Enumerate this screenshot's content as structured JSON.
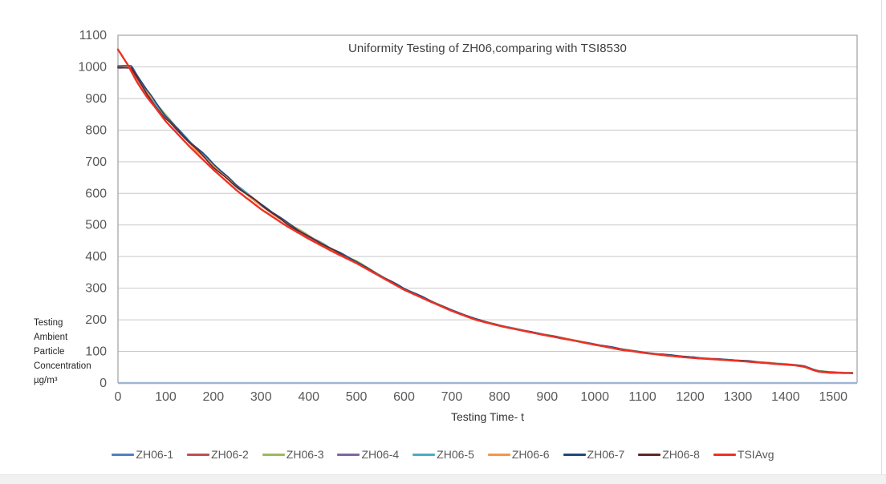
{
  "page": {
    "background": "#ffffff",
    "bottom_strip_color": "#f1f1f1",
    "edge_line_color": "#dedede"
  },
  "chart_data": {
    "type": "line",
    "title": "Uniformity Testing of ZH06,comparing with TSI8530",
    "xlabel": "Testing Time- t",
    "ylabel_lines": [
      "Testing",
      "Ambient",
      "Particle",
      "Concentration",
      "µg/m³"
    ],
    "xlim": [
      0,
      1550
    ],
    "xticks": [
      0,
      100,
      200,
      300,
      400,
      500,
      600,
      700,
      800,
      900,
      1000,
      1100,
      1200,
      1300,
      1400,
      1500
    ],
    "ylim": [
      0,
      1100
    ],
    "yticks": [
      0,
      100,
      200,
      300,
      400,
      500,
      600,
      700,
      800,
      900,
      1000,
      1100
    ],
    "grid": "horizontal-only",
    "gridline_color": "#c9c9c9",
    "plot_border_color": "#a6a6a6",
    "baseline_color": "#9db6d4",
    "tick_label_color": "#595959",
    "legend_position": "bottom",
    "series": [
      {
        "name": "ZH06-1",
        "color": "#4F81BD",
        "trend": "zh_trend",
        "jitter": true,
        "width": 1.6
      },
      {
        "name": "ZH06-2",
        "color": "#C0504D",
        "trend": "zh_trend",
        "jitter": true,
        "width": 1.6
      },
      {
        "name": "ZH06-3",
        "color": "#9BBB59",
        "trend": "zh_trend",
        "jitter": true,
        "width": 1.6
      },
      {
        "name": "ZH06-4",
        "color": "#8064A2",
        "trend": "zh_trend",
        "jitter": true,
        "width": 1.6
      },
      {
        "name": "ZH06-5",
        "color": "#4BACC6",
        "trend": "zh_trend",
        "jitter": true,
        "width": 1.6
      },
      {
        "name": "ZH06-6",
        "color": "#F79646",
        "trend": "zh_trend",
        "jitter": true,
        "width": 1.6
      },
      {
        "name": "ZH06-7",
        "color": "#1F497D",
        "trend": "zh_trend",
        "jitter": true,
        "width": 1.6
      },
      {
        "name": "ZH06-8",
        "color": "#632523",
        "trend": "zh_trend",
        "jitter": true,
        "width": 1.6
      },
      {
        "name": "TSIAvg",
        "color": "#EE3124",
        "trend": "tsi_trend",
        "jitter": false,
        "width": 2.4
      }
    ],
    "zh_trend": [
      [
        0,
        1000
      ],
      [
        28,
        1000
      ],
      [
        60,
        920
      ],
      [
        100,
        843
      ],
      [
        150,
        762
      ],
      [
        200,
        688
      ],
      [
        250,
        622
      ],
      [
        300,
        563
      ],
      [
        350,
        510
      ],
      [
        400,
        464
      ],
      [
        450,
        422
      ],
      [
        500,
        383
      ],
      [
        550,
        340
      ],
      [
        600,
        297
      ],
      [
        650,
        263
      ],
      [
        700,
        230
      ],
      [
        750,
        201
      ],
      [
        800,
        182
      ],
      [
        850,
        166
      ],
      [
        900,
        151
      ],
      [
        950,
        137
      ],
      [
        1000,
        122
      ],
      [
        1050,
        108
      ],
      [
        1100,
        97
      ],
      [
        1150,
        88
      ],
      [
        1200,
        81
      ],
      [
        1250,
        76
      ],
      [
        1300,
        71
      ],
      [
        1360,
        64
      ],
      [
        1420,
        57
      ],
      [
        1440,
        52
      ],
      [
        1455,
        44
      ],
      [
        1470,
        37
      ],
      [
        1490,
        34
      ],
      [
        1540,
        32
      ]
    ],
    "tsi_trend": [
      [
        0,
        1055
      ],
      [
        20,
        1008
      ],
      [
        40,
        952
      ],
      [
        60,
        906
      ],
      [
        80,
        868
      ],
      [
        100,
        828
      ],
      [
        150,
        748
      ],
      [
        200,
        675
      ],
      [
        250,
        608
      ],
      [
        300,
        550
      ],
      [
        350,
        500
      ],
      [
        400,
        456
      ],
      [
        450,
        416
      ],
      [
        500,
        379
      ],
      [
        550,
        337
      ],
      [
        600,
        295
      ],
      [
        650,
        261
      ],
      [
        700,
        228
      ],
      [
        750,
        200
      ],
      [
        800,
        181
      ],
      [
        850,
        165
      ],
      [
        900,
        150
      ],
      [
        950,
        136
      ],
      [
        1000,
        121
      ],
      [
        1050,
        107
      ],
      [
        1100,
        96
      ],
      [
        1150,
        87
      ],
      [
        1200,
        80
      ],
      [
        1250,
        75
      ],
      [
        1300,
        70
      ],
      [
        1360,
        63
      ],
      [
        1420,
        56
      ],
      [
        1440,
        51
      ],
      [
        1455,
        43
      ],
      [
        1470,
        36
      ],
      [
        1490,
        33
      ],
      [
        1540,
        31
      ]
    ]
  }
}
